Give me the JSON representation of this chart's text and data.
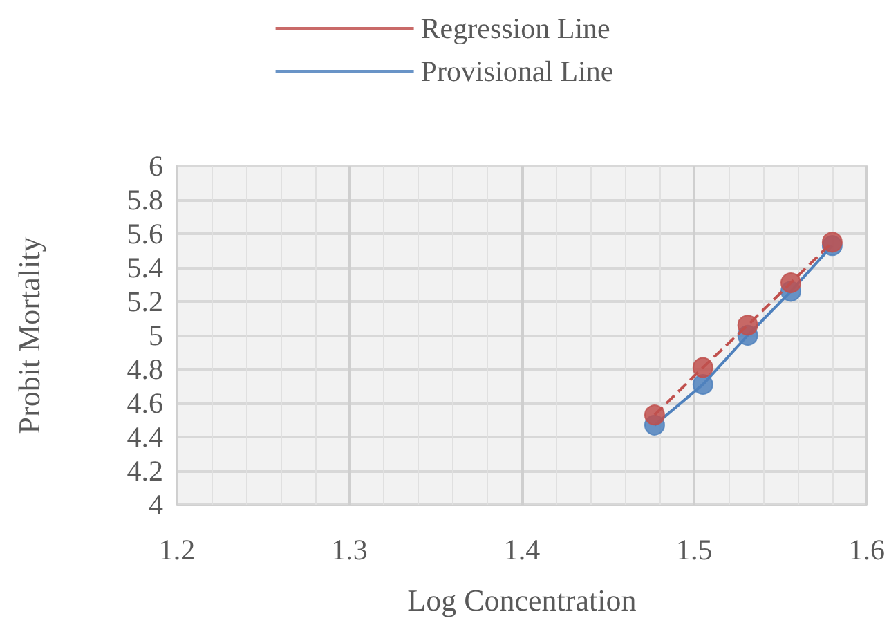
{
  "chart_data": {
    "type": "line",
    "xlabel": "Log Concentration",
    "ylabel": "Probit Mortality",
    "x": [
      1.477,
      1.505,
      1.531,
      1.556,
      1.58
    ],
    "series": [
      {
        "name": "Regression Line",
        "color": "#c0504d",
        "line_style": "dashed",
        "values": [
          4.53,
          4.81,
          5.06,
          5.31,
          5.55
        ]
      },
      {
        "name": "Provisional Line",
        "color": "#4f81bd",
        "line_style": "solid",
        "values": [
          4.47,
          4.71,
          5.0,
          5.26,
          5.53
        ]
      }
    ],
    "xlim": [
      1.2,
      1.6
    ],
    "xticks": [
      1.2,
      1.3,
      1.4,
      1.5,
      1.6
    ],
    "ylim": [
      4,
      6
    ],
    "yticks": [
      4,
      4.2,
      4.4,
      4.6,
      4.8,
      5,
      5.2,
      5.4,
      5.6,
      5.8,
      6
    ],
    "grid": true,
    "legend": "top",
    "marker": "circle"
  }
}
